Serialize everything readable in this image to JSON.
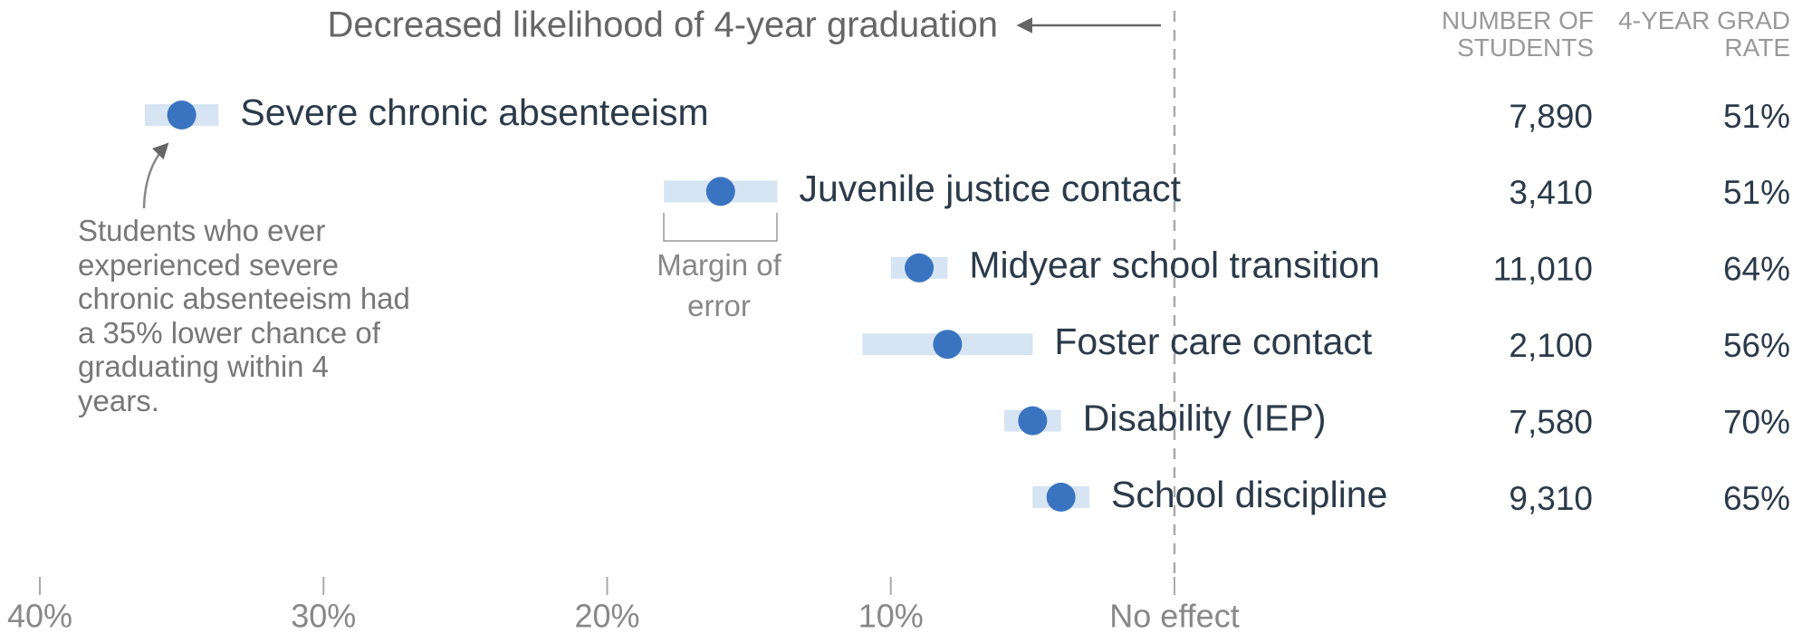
{
  "chart_data": {
    "type": "dot",
    "title": "Decreased likelihood of 4-year graduation",
    "categories": [
      "Severe chronic absenteeism",
      "Juvenile justice contact",
      "Midyear school transition",
      "Foster care contact",
      "Disability (IEP)",
      "School discipline"
    ],
    "series": [
      {
        "name": "Decreased likelihood",
        "color": "#3a74c0",
        "error_color": "#d6e4f3",
        "values": [
          35,
          16,
          9,
          8,
          5,
          4
        ],
        "errors": [
          1.3,
          2,
          1,
          3,
          1,
          1
        ]
      }
    ],
    "columns": [
      {
        "header": "NUMBER OF STUDENTS",
        "values": [
          7890,
          3410,
          11010,
          2100,
          7580,
          9310
        ],
        "value_labels": [
          "7,890",
          "3,410",
          "11,010",
          "2,100",
          "7,580",
          "9,310"
        ]
      },
      {
        "header": "4-YEAR GRAD RATE",
        "values": [
          51,
          51,
          64,
          56,
          70,
          65
        ],
        "value_labels": [
          "51%",
          "51%",
          "64%",
          "56%",
          "70%",
          "65%"
        ]
      }
    ],
    "xlim": [
      40,
      0
    ],
    "xticks": [
      {
        "value": 40,
        "label": "40%"
      },
      {
        "value": 30,
        "label": "30%"
      },
      {
        "value": 20,
        "label": "20%"
      },
      {
        "value": 10,
        "label": "10%"
      },
      {
        "value": 0,
        "label": "No effect"
      }
    ],
    "annotations": [
      "Margin of error",
      "Students who ever experienced severe chronic absenteeism had a 35% lower chance of graduating within 4 years."
    ]
  }
}
